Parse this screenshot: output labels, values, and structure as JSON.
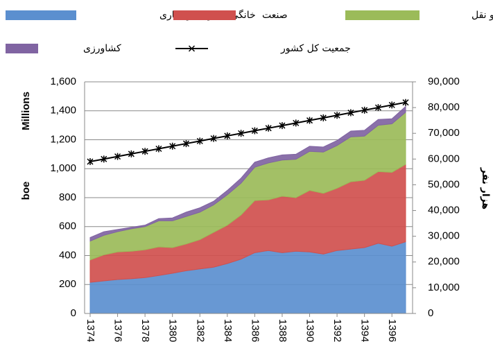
{
  "chart_data": {
    "type": "stacked-area",
    "ylabel_top": "Millions",
    "ylabel": "boe",
    "y2label": "هزار نفر",
    "x": [
      1374,
      1375,
      1376,
      1377,
      1378,
      1379,
      1380,
      1381,
      1382,
      1383,
      1384,
      1385,
      1386,
      1387,
      1388,
      1389,
      1390,
      1391,
      1392,
      1393,
      1394,
      1395,
      1396,
      1397
    ],
    "xlim": [
      1374,
      1397
    ],
    "xticks": [
      1374,
      1376,
      1378,
      1380,
      1382,
      1384,
      1386,
      1388,
      1390,
      1392,
      1394,
      1396
    ],
    "ylim": [
      0,
      1600
    ],
    "yticks": [
      0,
      200,
      400,
      600,
      800,
      {
        "value": 1000,
        "label": "1,000"
      },
      {
        "value": 1200,
        "label": "1,200"
      },
      {
        "value": 1400,
        "label": "1,400"
      },
      {
        "value": 1600,
        "label": "1,600"
      }
    ],
    "y2lim": [
      0,
      90000
    ],
    "y2ticks": [
      0,
      {
        "value": 10000,
        "label": "10,000"
      },
      {
        "value": 20000,
        "label": "20,000"
      },
      {
        "value": 30000,
        "label": "30,000"
      },
      {
        "value": 40000,
        "label": "40,000"
      },
      {
        "value": 50000,
        "label": "50,000"
      },
      {
        "value": 60000,
        "label": "60,000"
      },
      {
        "value": 70000,
        "label": "70,000"
      },
      {
        "value": 80000,
        "label": "80,000"
      },
      {
        "value": 90000,
        "label": "90,000"
      }
    ],
    "grid": true,
    "series": [
      {
        "name": "خانگی، عمومی  و تجاری",
        "color": "#5b8fcf",
        "values": [
          215,
          225,
          235,
          240,
          248,
          262,
          278,
          295,
          308,
          320,
          345,
          375,
          420,
          435,
          420,
          430,
          425,
          410,
          435,
          445,
          455,
          485,
          465,
          495
        ]
      },
      {
        "name": "صنعت",
        "color": "#d0504e",
        "values": [
          155,
          180,
          190,
          190,
          192,
          198,
          177,
          185,
          202,
          240,
          265,
          305,
          360,
          350,
          390,
          370,
          425,
          420,
          430,
          465,
          465,
          495,
          510,
          535
        ]
      },
      {
        "name": "حمل و نقل",
        "color": "#9bbb59",
        "values": [
          130,
          135,
          140,
          155,
          160,
          180,
          185,
          190,
          190,
          190,
          210,
          220,
          230,
          255,
          250,
          265,
          270,
          285,
          295,
          310,
          305,
          320,
          335,
          360
        ]
      },
      {
        "name": "کشاورزی",
        "color": "#8064a2",
        "values": [
          25,
          25,
          15,
          10,
          10,
          15,
          20,
          30,
          30,
          25,
          30,
          35,
          35,
          35,
          35,
          35,
          35,
          35,
          35,
          40,
          40,
          40,
          35,
          40
        ]
      },
      {
        "name": "جمعیت کل کشور",
        "color": "#000000",
        "type": "line",
        "axis": "y2",
        "values": [
          59000,
          60000,
          61000,
          62000,
          63000,
          64000,
          65000,
          66000,
          67000,
          68000,
          69000,
          70000,
          71000,
          72000,
          73000,
          74000,
          75000,
          76000,
          77000,
          78000,
          79000,
          80000,
          81000,
          82000
        ]
      }
    ]
  }
}
